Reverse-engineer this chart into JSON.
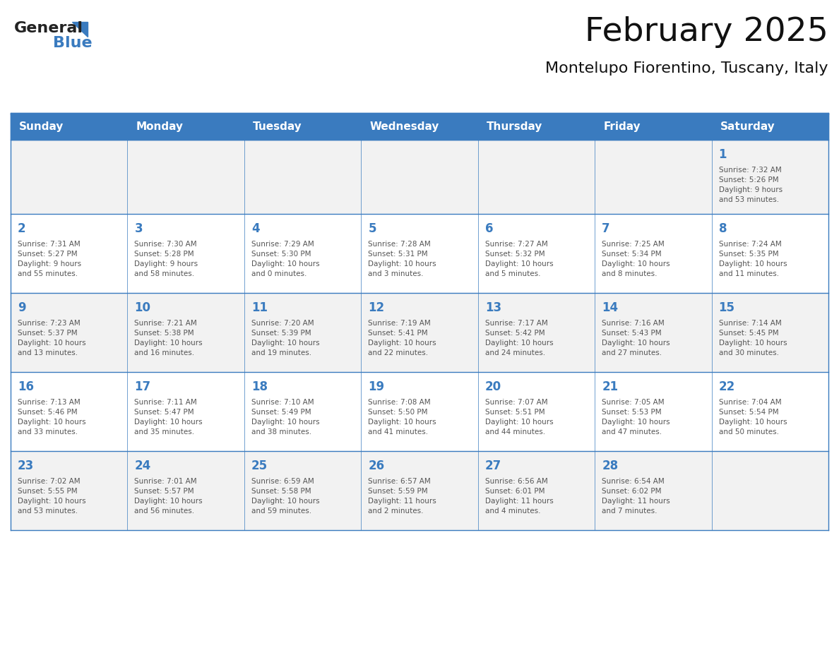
{
  "title": "February 2025",
  "subtitle": "Montelupo Fiorentino, Tuscany, Italy",
  "header_bg_color": "#3a7bbf",
  "header_text_color": "#ffffff",
  "cell_bg_color_light": "#f2f2f2",
  "cell_bg_color_white": "#ffffff",
  "day_number_color": "#3a7bbf",
  "cell_text_color": "#555555",
  "border_color": "#3a7bbf",
  "days_of_week": [
    "Sunday",
    "Monday",
    "Tuesday",
    "Wednesday",
    "Thursday",
    "Friday",
    "Saturday"
  ],
  "logo_text1": "General",
  "logo_text2": "Blue",
  "logo_triangle_color": "#3a7bbf",
  "calendar_data": [
    [
      null,
      null,
      null,
      null,
      null,
      null,
      {
        "day": 1,
        "sunrise": "7:32 AM",
        "sunset": "5:26 PM",
        "daylight": "9 hours\nand 53 minutes."
      }
    ],
    [
      {
        "day": 2,
        "sunrise": "7:31 AM",
        "sunset": "5:27 PM",
        "daylight": "9 hours\nand 55 minutes."
      },
      {
        "day": 3,
        "sunrise": "7:30 AM",
        "sunset": "5:28 PM",
        "daylight": "9 hours\nand 58 minutes."
      },
      {
        "day": 4,
        "sunrise": "7:29 AM",
        "sunset": "5:30 PM",
        "daylight": "10 hours\nand 0 minutes."
      },
      {
        "day": 5,
        "sunrise": "7:28 AM",
        "sunset": "5:31 PM",
        "daylight": "10 hours\nand 3 minutes."
      },
      {
        "day": 6,
        "sunrise": "7:27 AM",
        "sunset": "5:32 PM",
        "daylight": "10 hours\nand 5 minutes."
      },
      {
        "day": 7,
        "sunrise": "7:25 AM",
        "sunset": "5:34 PM",
        "daylight": "10 hours\nand 8 minutes."
      },
      {
        "day": 8,
        "sunrise": "7:24 AM",
        "sunset": "5:35 PM",
        "daylight": "10 hours\nand 11 minutes."
      }
    ],
    [
      {
        "day": 9,
        "sunrise": "7:23 AM",
        "sunset": "5:37 PM",
        "daylight": "10 hours\nand 13 minutes."
      },
      {
        "day": 10,
        "sunrise": "7:21 AM",
        "sunset": "5:38 PM",
        "daylight": "10 hours\nand 16 minutes."
      },
      {
        "day": 11,
        "sunrise": "7:20 AM",
        "sunset": "5:39 PM",
        "daylight": "10 hours\nand 19 minutes."
      },
      {
        "day": 12,
        "sunrise": "7:19 AM",
        "sunset": "5:41 PM",
        "daylight": "10 hours\nand 22 minutes."
      },
      {
        "day": 13,
        "sunrise": "7:17 AM",
        "sunset": "5:42 PM",
        "daylight": "10 hours\nand 24 minutes."
      },
      {
        "day": 14,
        "sunrise": "7:16 AM",
        "sunset": "5:43 PM",
        "daylight": "10 hours\nand 27 minutes."
      },
      {
        "day": 15,
        "sunrise": "7:14 AM",
        "sunset": "5:45 PM",
        "daylight": "10 hours\nand 30 minutes."
      }
    ],
    [
      {
        "day": 16,
        "sunrise": "7:13 AM",
        "sunset": "5:46 PM",
        "daylight": "10 hours\nand 33 minutes."
      },
      {
        "day": 17,
        "sunrise": "7:11 AM",
        "sunset": "5:47 PM",
        "daylight": "10 hours\nand 35 minutes."
      },
      {
        "day": 18,
        "sunrise": "7:10 AM",
        "sunset": "5:49 PM",
        "daylight": "10 hours\nand 38 minutes."
      },
      {
        "day": 19,
        "sunrise": "7:08 AM",
        "sunset": "5:50 PM",
        "daylight": "10 hours\nand 41 minutes."
      },
      {
        "day": 20,
        "sunrise": "7:07 AM",
        "sunset": "5:51 PM",
        "daylight": "10 hours\nand 44 minutes."
      },
      {
        "day": 21,
        "sunrise": "7:05 AM",
        "sunset": "5:53 PM",
        "daylight": "10 hours\nand 47 minutes."
      },
      {
        "day": 22,
        "sunrise": "7:04 AM",
        "sunset": "5:54 PM",
        "daylight": "10 hours\nand 50 minutes."
      }
    ],
    [
      {
        "day": 23,
        "sunrise": "7:02 AM",
        "sunset": "5:55 PM",
        "daylight": "10 hours\nand 53 minutes."
      },
      {
        "day": 24,
        "sunrise": "7:01 AM",
        "sunset": "5:57 PM",
        "daylight": "10 hours\nand 56 minutes."
      },
      {
        "day": 25,
        "sunrise": "6:59 AM",
        "sunset": "5:58 PM",
        "daylight": "10 hours\nand 59 minutes."
      },
      {
        "day": 26,
        "sunrise": "6:57 AM",
        "sunset": "5:59 PM",
        "daylight": "11 hours\nand 2 minutes."
      },
      {
        "day": 27,
        "sunrise": "6:56 AM",
        "sunset": "6:01 PM",
        "daylight": "11 hours\nand 4 minutes."
      },
      {
        "day": 28,
        "sunrise": "6:54 AM",
        "sunset": "6:02 PM",
        "daylight": "11 hours\nand 7 minutes."
      },
      null
    ]
  ]
}
